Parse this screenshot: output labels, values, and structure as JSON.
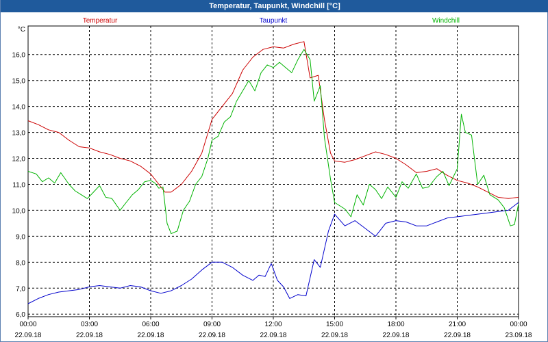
{
  "window": {
    "title": "Temperatur, Taupunkt, Windchill [°C]"
  },
  "colors": {
    "title_bar": "#1f5a9c",
    "temperatur": "#cc0000",
    "taupunkt": "#0000cc",
    "windchill": "#00b300",
    "grid": "#000000"
  },
  "chart_data": {
    "type": "line",
    "title": "Temperatur, Taupunkt, Windchill [°C]",
    "ylabel": "°C",
    "xlabel": "",
    "ylim": [
      5.9,
      17.1
    ],
    "yticks": [
      "6,0",
      "7,0",
      "8,0",
      "9,0",
      "10,0",
      "11,0",
      "12,0",
      "13,0",
      "14,0",
      "15,0",
      "16,0"
    ],
    "xlim": [
      0,
      24
    ],
    "xticks": [
      {
        "time": "00:00",
        "date": "22.09.18"
      },
      {
        "time": "03:00",
        "date": "22.09.18"
      },
      {
        "time": "06:00",
        "date": "22.09.18"
      },
      {
        "time": "09:00",
        "date": "22.09.18"
      },
      {
        "time": "12:00",
        "date": "22.09.18"
      },
      {
        "time": "15:00",
        "date": "22.09.18"
      },
      {
        "time": "18:00",
        "date": "22.09.18"
      },
      {
        "time": "21:00",
        "date": "22.09.18"
      },
      {
        "time": "00:00",
        "date": "23.09.18"
      }
    ],
    "grid": true,
    "legend_position": "top",
    "series": [
      {
        "name": "Temperatur",
        "color": "#cc0000",
        "points": [
          [
            0,
            13.45
          ],
          [
            0.5,
            13.3
          ],
          [
            1,
            13.1
          ],
          [
            1.5,
            13.0
          ],
          [
            2,
            12.7
          ],
          [
            2.5,
            12.45
          ],
          [
            3,
            12.4
          ],
          [
            3.5,
            12.25
          ],
          [
            4,
            12.15
          ],
          [
            4.5,
            12.0
          ],
          [
            5,
            11.9
          ],
          [
            5.5,
            11.7
          ],
          [
            6,
            11.4
          ],
          [
            6.4,
            11.0
          ],
          [
            6.7,
            10.7
          ],
          [
            7,
            10.7
          ],
          [
            7.5,
            11.0
          ],
          [
            8,
            11.5
          ],
          [
            8.5,
            12.2
          ],
          [
            9,
            13.5
          ],
          [
            9.5,
            14.0
          ],
          [
            10,
            14.5
          ],
          [
            10.5,
            15.4
          ],
          [
            11,
            15.9
          ],
          [
            11.5,
            16.2
          ],
          [
            12,
            16.3
          ],
          [
            12.5,
            16.25
          ],
          [
            13,
            16.4
          ],
          [
            13.5,
            16.5
          ],
          [
            13.8,
            15.1
          ],
          [
            14.2,
            15.2
          ],
          [
            14.5,
            13.5
          ],
          [
            14.8,
            12.2
          ],
          [
            15,
            11.9
          ],
          [
            15.5,
            11.85
          ],
          [
            16,
            11.95
          ],
          [
            16.5,
            12.1
          ],
          [
            17,
            12.25
          ],
          [
            17.5,
            12.15
          ],
          [
            18,
            12.0
          ],
          [
            18.5,
            11.75
          ],
          [
            19,
            11.45
          ],
          [
            19.5,
            11.5
          ],
          [
            20,
            11.6
          ],
          [
            20.5,
            11.35
          ],
          [
            21,
            11.15
          ],
          [
            21.5,
            11.05
          ],
          [
            22,
            10.9
          ],
          [
            22.5,
            10.7
          ],
          [
            23,
            10.5
          ],
          [
            23.5,
            10.45
          ],
          [
            24,
            10.5
          ]
        ]
      },
      {
        "name": "Taupunkt",
        "color": "#0000cc",
        "points": [
          [
            0,
            6.4
          ],
          [
            0.5,
            6.6
          ],
          [
            1,
            6.75
          ],
          [
            1.5,
            6.85
          ],
          [
            2,
            6.9
          ],
          [
            2.5,
            6.95
          ],
          [
            3,
            7.05
          ],
          [
            3.5,
            7.1
          ],
          [
            4,
            7.05
          ],
          [
            4.5,
            7.0
          ],
          [
            5,
            7.1
          ],
          [
            5.5,
            7.05
          ],
          [
            6,
            6.9
          ],
          [
            6.5,
            6.8
          ],
          [
            7,
            6.9
          ],
          [
            7.5,
            7.1
          ],
          [
            8,
            7.35
          ],
          [
            8.5,
            7.7
          ],
          [
            9,
            8.0
          ],
          [
            9.5,
            8.0
          ],
          [
            10,
            7.8
          ],
          [
            10.5,
            7.5
          ],
          [
            11,
            7.3
          ],
          [
            11.3,
            7.5
          ],
          [
            11.6,
            7.45
          ],
          [
            11.9,
            7.95
          ],
          [
            12.2,
            7.3
          ],
          [
            12.5,
            7.05
          ],
          [
            12.8,
            6.6
          ],
          [
            13.2,
            6.75
          ],
          [
            13.6,
            6.7
          ],
          [
            14,
            8.1
          ],
          [
            14.3,
            7.8
          ],
          [
            14.7,
            9.2
          ],
          [
            15,
            9.85
          ],
          [
            15.5,
            9.4
          ],
          [
            16,
            9.6
          ],
          [
            16.5,
            9.3
          ],
          [
            17,
            9.0
          ],
          [
            17.5,
            9.5
          ],
          [
            18,
            9.6
          ],
          [
            18.5,
            9.55
          ],
          [
            19,
            9.4
          ],
          [
            19.5,
            9.4
          ],
          [
            20,
            9.55
          ],
          [
            20.5,
            9.7
          ],
          [
            21,
            9.75
          ],
          [
            21.5,
            9.8
          ],
          [
            22,
            9.85
          ],
          [
            22.5,
            9.9
          ],
          [
            23,
            9.95
          ],
          [
            23.5,
            10.0
          ],
          [
            24,
            10.3
          ]
        ]
      },
      {
        "name": "Windchill",
        "color": "#00b300",
        "points": [
          [
            0,
            11.5
          ],
          [
            0.4,
            11.4
          ],
          [
            0.7,
            11.1
          ],
          [
            1.0,
            11.25
          ],
          [
            1.3,
            11.05
          ],
          [
            1.6,
            11.45
          ],
          [
            2.0,
            11.0
          ],
          [
            2.3,
            10.75
          ],
          [
            2.6,
            10.6
          ],
          [
            2.9,
            10.45
          ],
          [
            3.2,
            10.7
          ],
          [
            3.5,
            10.95
          ],
          [
            3.8,
            10.5
          ],
          [
            4.1,
            10.45
          ],
          [
            4.5,
            10.0
          ],
          [
            4.8,
            10.3
          ],
          [
            5.1,
            10.6
          ],
          [
            5.4,
            10.8
          ],
          [
            5.7,
            11.1
          ],
          [
            6.0,
            11.15
          ],
          [
            6.2,
            11.05
          ],
          [
            6.4,
            10.85
          ],
          [
            6.6,
            10.9
          ],
          [
            6.8,
            9.5
          ],
          [
            7.0,
            9.1
          ],
          [
            7.3,
            9.2
          ],
          [
            7.6,
            10.0
          ],
          [
            7.9,
            10.35
          ],
          [
            8.2,
            11.0
          ],
          [
            8.5,
            11.3
          ],
          [
            8.8,
            12.0
          ],
          [
            9.0,
            12.7
          ],
          [
            9.3,
            12.85
          ],
          [
            9.6,
            13.4
          ],
          [
            9.9,
            13.6
          ],
          [
            10.2,
            14.2
          ],
          [
            10.5,
            14.6
          ],
          [
            10.8,
            15.0
          ],
          [
            11.1,
            14.6
          ],
          [
            11.4,
            15.3
          ],
          [
            11.7,
            15.6
          ],
          [
            12.0,
            15.5
          ],
          [
            12.3,
            15.7
          ],
          [
            12.6,
            15.5
          ],
          [
            12.9,
            15.3
          ],
          [
            13.2,
            15.8
          ],
          [
            13.5,
            16.2
          ],
          [
            13.8,
            15.8
          ],
          [
            14.0,
            14.2
          ],
          [
            14.3,
            14.8
          ],
          [
            14.5,
            12.8
          ],
          [
            14.8,
            11.2
          ],
          [
            15.0,
            10.3
          ],
          [
            15.5,
            10.05
          ],
          [
            15.8,
            9.75
          ],
          [
            16.1,
            10.6
          ],
          [
            16.4,
            10.2
          ],
          [
            16.7,
            11.0
          ],
          [
            17.0,
            10.8
          ],
          [
            17.3,
            10.45
          ],
          [
            17.6,
            10.9
          ],
          [
            18.0,
            10.5
          ],
          [
            18.3,
            11.1
          ],
          [
            18.6,
            10.85
          ],
          [
            19.0,
            11.4
          ],
          [
            19.3,
            10.85
          ],
          [
            19.6,
            10.9
          ],
          [
            20.0,
            11.3
          ],
          [
            20.3,
            11.5
          ],
          [
            20.6,
            10.95
          ],
          [
            21.0,
            11.6
          ],
          [
            21.2,
            13.7
          ],
          [
            21.4,
            13.0
          ],
          [
            21.7,
            12.9
          ],
          [
            22.0,
            11.0
          ],
          [
            22.3,
            11.35
          ],
          [
            22.6,
            10.6
          ],
          [
            23.0,
            10.4
          ],
          [
            23.3,
            10.1
          ],
          [
            23.6,
            9.4
          ],
          [
            23.8,
            9.45
          ],
          [
            24.0,
            10.25
          ]
        ]
      }
    ]
  }
}
